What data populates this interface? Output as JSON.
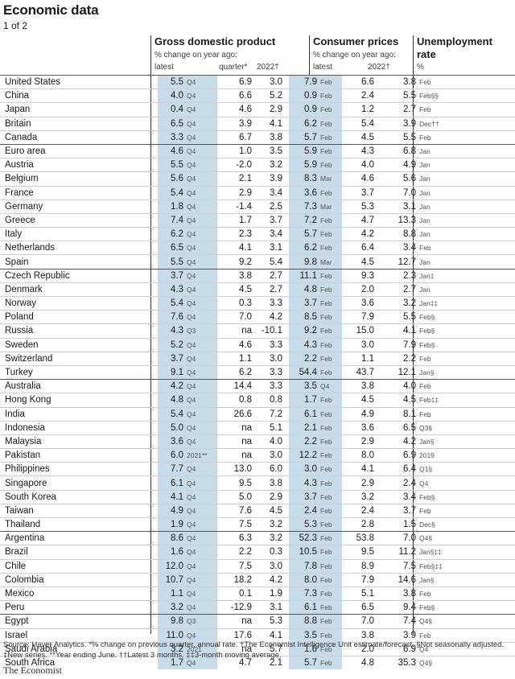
{
  "title": "Economic data",
  "subtitle": "1 of 2",
  "headers": {
    "gdp": "Gross domestic product",
    "gdp_sub": "% change on year ago:",
    "gdp_latest": "latest",
    "gdp_quarter": "quarter*",
    "gdp_2022": "2022†",
    "cpi": "Consumer prices",
    "cpi_sub": "% change on year ago:",
    "cpi_latest": "latest",
    "cpi_2022": "2022†",
    "unemp1": "Unemployment",
    "unemp2": "rate",
    "unemp_unit": "%"
  },
  "colors": {
    "shade": "#c6dde9"
  },
  "rows": [
    [
      "United States",
      "5.5",
      "Q4",
      "6.9",
      "3.0",
      "7.9",
      "Feb",
      "6.6",
      "3.8",
      "Feb"
    ],
    [
      "China",
      "4.0",
      "Q4",
      "6.6",
      "5.2",
      "0.9",
      "Feb",
      "2.4",
      "5.5",
      "Feb§§"
    ],
    [
      "Japan",
      "0.4",
      "Q4",
      "4.6",
      "2.9",
      "0.9",
      "Feb",
      "1.2",
      "2.7",
      "Feb"
    ],
    [
      "Britain",
      "6.5",
      "Q4",
      "3.9",
      "4.1",
      "6.2",
      "Feb",
      "5.4",
      "3.9",
      "Dec††"
    ],
    [
      "Canada",
      "3.3",
      "Q4",
      "6.7",
      "3.8",
      "5.7",
      "Feb",
      "4.5",
      "5.5",
      "Feb"
    ],
    [
      "Euro area",
      "4.6",
      "Q4",
      "1.0",
      "3.5",
      "5.9",
      "Feb",
      "4.3",
      "6.8",
      "Jan"
    ],
    [
      "Austria",
      "5.5",
      "Q4",
      "-2.0",
      "3.2",
      "5.9",
      "Feb",
      "4.0",
      "4.9",
      "Jan"
    ],
    [
      "Belgium",
      "5.6",
      "Q4",
      "2.1",
      "3.9",
      "8.3",
      "Mar",
      "4.6",
      "5.6",
      "Jan"
    ],
    [
      "France",
      "5.4",
      "Q4",
      "2.9",
      "3.4",
      "3.6",
      "Feb",
      "3.7",
      "7.0",
      "Jan"
    ],
    [
      "Germany",
      "1.8",
      "Q4",
      "-1.4",
      "2.5",
      "7.3",
      "Mar",
      "5.3",
      "3.1",
      "Jan"
    ],
    [
      "Greece",
      "7.4",
      "Q4",
      "1.7",
      "3.7",
      "7.2",
      "Feb",
      "4.7",
      "13.3",
      "Jan"
    ],
    [
      "Italy",
      "6.2",
      "Q4",
      "2.3",
      "3.4",
      "5.7",
      "Feb",
      "4.2",
      "8.8",
      "Jan"
    ],
    [
      "Netherlands",
      "6.5",
      "Q4",
      "4.1",
      "3.1",
      "6.2",
      "Feb",
      "6.4",
      "3.4",
      "Feb"
    ],
    [
      "Spain",
      "5.5",
      "Q4",
      "9.2",
      "5.4",
      "9.8",
      "Mar",
      "4.5",
      "12.7",
      "Jan"
    ],
    [
      "Czech Republic",
      "3.7",
      "Q4",
      "3.8",
      "2.7",
      "11.1",
      "Feb",
      "9.3",
      "2.3",
      "Jan‡"
    ],
    [
      "Denmark",
      "4.3",
      "Q4",
      "4.5",
      "2.7",
      "4.8",
      "Feb",
      "2.0",
      "2.7",
      "Jan"
    ],
    [
      "Norway",
      "5.4",
      "Q4",
      "0.3",
      "3.3",
      "3.7",
      "Feb",
      "3.6",
      "3.2",
      "Jan‡‡"
    ],
    [
      "Poland",
      "7.6",
      "Q4",
      "7.0",
      "4.2",
      "8.5",
      "Feb",
      "7.9",
      "5.5",
      "Feb§"
    ],
    [
      "Russia",
      "4.3",
      "Q3",
      "na",
      "-10.1",
      "9.2",
      "Feb",
      "15.0",
      "4.1",
      "Feb§"
    ],
    [
      "Sweden",
      "5.2",
      "Q4",
      "4.6",
      "3.3",
      "4.3",
      "Feb",
      "3.0",
      "7.9",
      "Feb§"
    ],
    [
      "Switzerland",
      "3.7",
      "Q4",
      "1.1",
      "3.0",
      "2.2",
      "Feb",
      "1.1",
      "2.2",
      "Feb"
    ],
    [
      "Turkey",
      "9.1",
      "Q4",
      "6.2",
      "3.3",
      "54.4",
      "Feb",
      "43.7",
      "12.1",
      "Jan§"
    ],
    [
      "Australia",
      "4.2",
      "Q4",
      "14.4",
      "3.3",
      "3.5",
      "Q4",
      "3.8",
      "4.0",
      "Feb"
    ],
    [
      "Hong Kong",
      "4.8",
      "Q4",
      "0.8",
      "0.8",
      "1.7",
      "Feb",
      "4.5",
      "4.5",
      "Feb‡‡"
    ],
    [
      "India",
      "5.4",
      "Q4",
      "26.6",
      "7.2",
      "6.1",
      "Feb",
      "4.9",
      "8.1",
      "Feb"
    ],
    [
      "Indonesia",
      "5.0",
      "Q4",
      "na",
      "5.1",
      "2.1",
      "Feb",
      "3.6",
      "6.5",
      "Q3§"
    ],
    [
      "Malaysia",
      "3.6",
      "Q4",
      "na",
      "4.0",
      "2.2",
      "Feb",
      "2.9",
      "4.2",
      "Jan§"
    ],
    [
      "Pakistan",
      "6.0",
      "2021**",
      "na",
      "3.0",
      "12.2",
      "Feb",
      "8.0",
      "6.9",
      "2019"
    ],
    [
      "Philippines",
      "7.7",
      "Q4",
      "13.0",
      "6.0",
      "3.0",
      "Feb",
      "4.1",
      "6.4",
      "Q1§"
    ],
    [
      "Singapore",
      "6.1",
      "Q4",
      "9.5",
      "3.8",
      "4.3",
      "Feb",
      "2.9",
      "2.4",
      "Q4"
    ],
    [
      "South Korea",
      "4.1",
      "Q4",
      "5.0",
      "2.9",
      "3.7",
      "Feb",
      "3.2",
      "3.4",
      "Feb§"
    ],
    [
      "Taiwan",
      "4.9",
      "Q4",
      "7.6",
      "4.5",
      "2.4",
      "Feb",
      "2.4",
      "3.7",
      "Feb"
    ],
    [
      "Thailand",
      "1.9",
      "Q4",
      "7.5",
      "3.2",
      "5.3",
      "Feb",
      "2.8",
      "1.5",
      "Dec§"
    ],
    [
      "Argentina",
      "8.6",
      "Q4",
      "6.3",
      "3.2",
      "52.3",
      "Feb",
      "53.8",
      "7.0",
      "Q4§"
    ],
    [
      "Brazil",
      "1.6",
      "Q4",
      "2.2",
      "0.3",
      "10.5",
      "Feb",
      "9.5",
      "11.2",
      "Jan§‡‡"
    ],
    [
      "Chile",
      "12.0",
      "Q4",
      "7.5",
      "3.0",
      "7.8",
      "Feb",
      "8.9",
      "7.5",
      "Feb§‡‡"
    ],
    [
      "Colombia",
      "10.7",
      "Q4",
      "18.2",
      "4.2",
      "8.0",
      "Feb",
      "7.9",
      "14.6",
      "Jan§"
    ],
    [
      "Mexico",
      "1.1",
      "Q4",
      "0.1",
      "1.9",
      "7.3",
      "Feb",
      "5.1",
      "3.8",
      "Feb"
    ],
    [
      "Peru",
      "3.2",
      "Q4",
      "-12.9",
      "3.1",
      "6.1",
      "Feb",
      "6.5",
      "9.4",
      "Feb§"
    ],
    [
      "Egypt",
      "9.8",
      "Q3",
      "na",
      "5.3",
      "8.8",
      "Feb",
      "7.0",
      "7.4",
      "Q4§"
    ],
    [
      "Israel",
      "11.0",
      "Q4",
      "17.6",
      "4.1",
      "3.5",
      "Feb",
      "3.8",
      "3.9",
      "Feb"
    ],
    [
      "Saudi Arabia",
      "3.2",
      "2021",
      "na",
      "5.7",
      "1.6",
      "Feb",
      "2.0",
      "6.9",
      "Q4"
    ],
    [
      "South Africa",
      "1.7",
      "Q4",
      "4.7",
      "2.1",
      "5.7",
      "Feb",
      "4.8",
      "35.3",
      "Q4§"
    ]
  ],
  "groupStarts": [
    0,
    5,
    14,
    22,
    33,
    39
  ],
  "footnote": "Source: Haver Analytics. *% change on previous quarter, annual rate. †The Economist Intelligence Unit estimate/forecast. §Not seasonally adjusted. ‡New series. **Year ending June. ††Latest 3 months. ‡‡3-month moving average.",
  "source_logo": "The Economist"
}
